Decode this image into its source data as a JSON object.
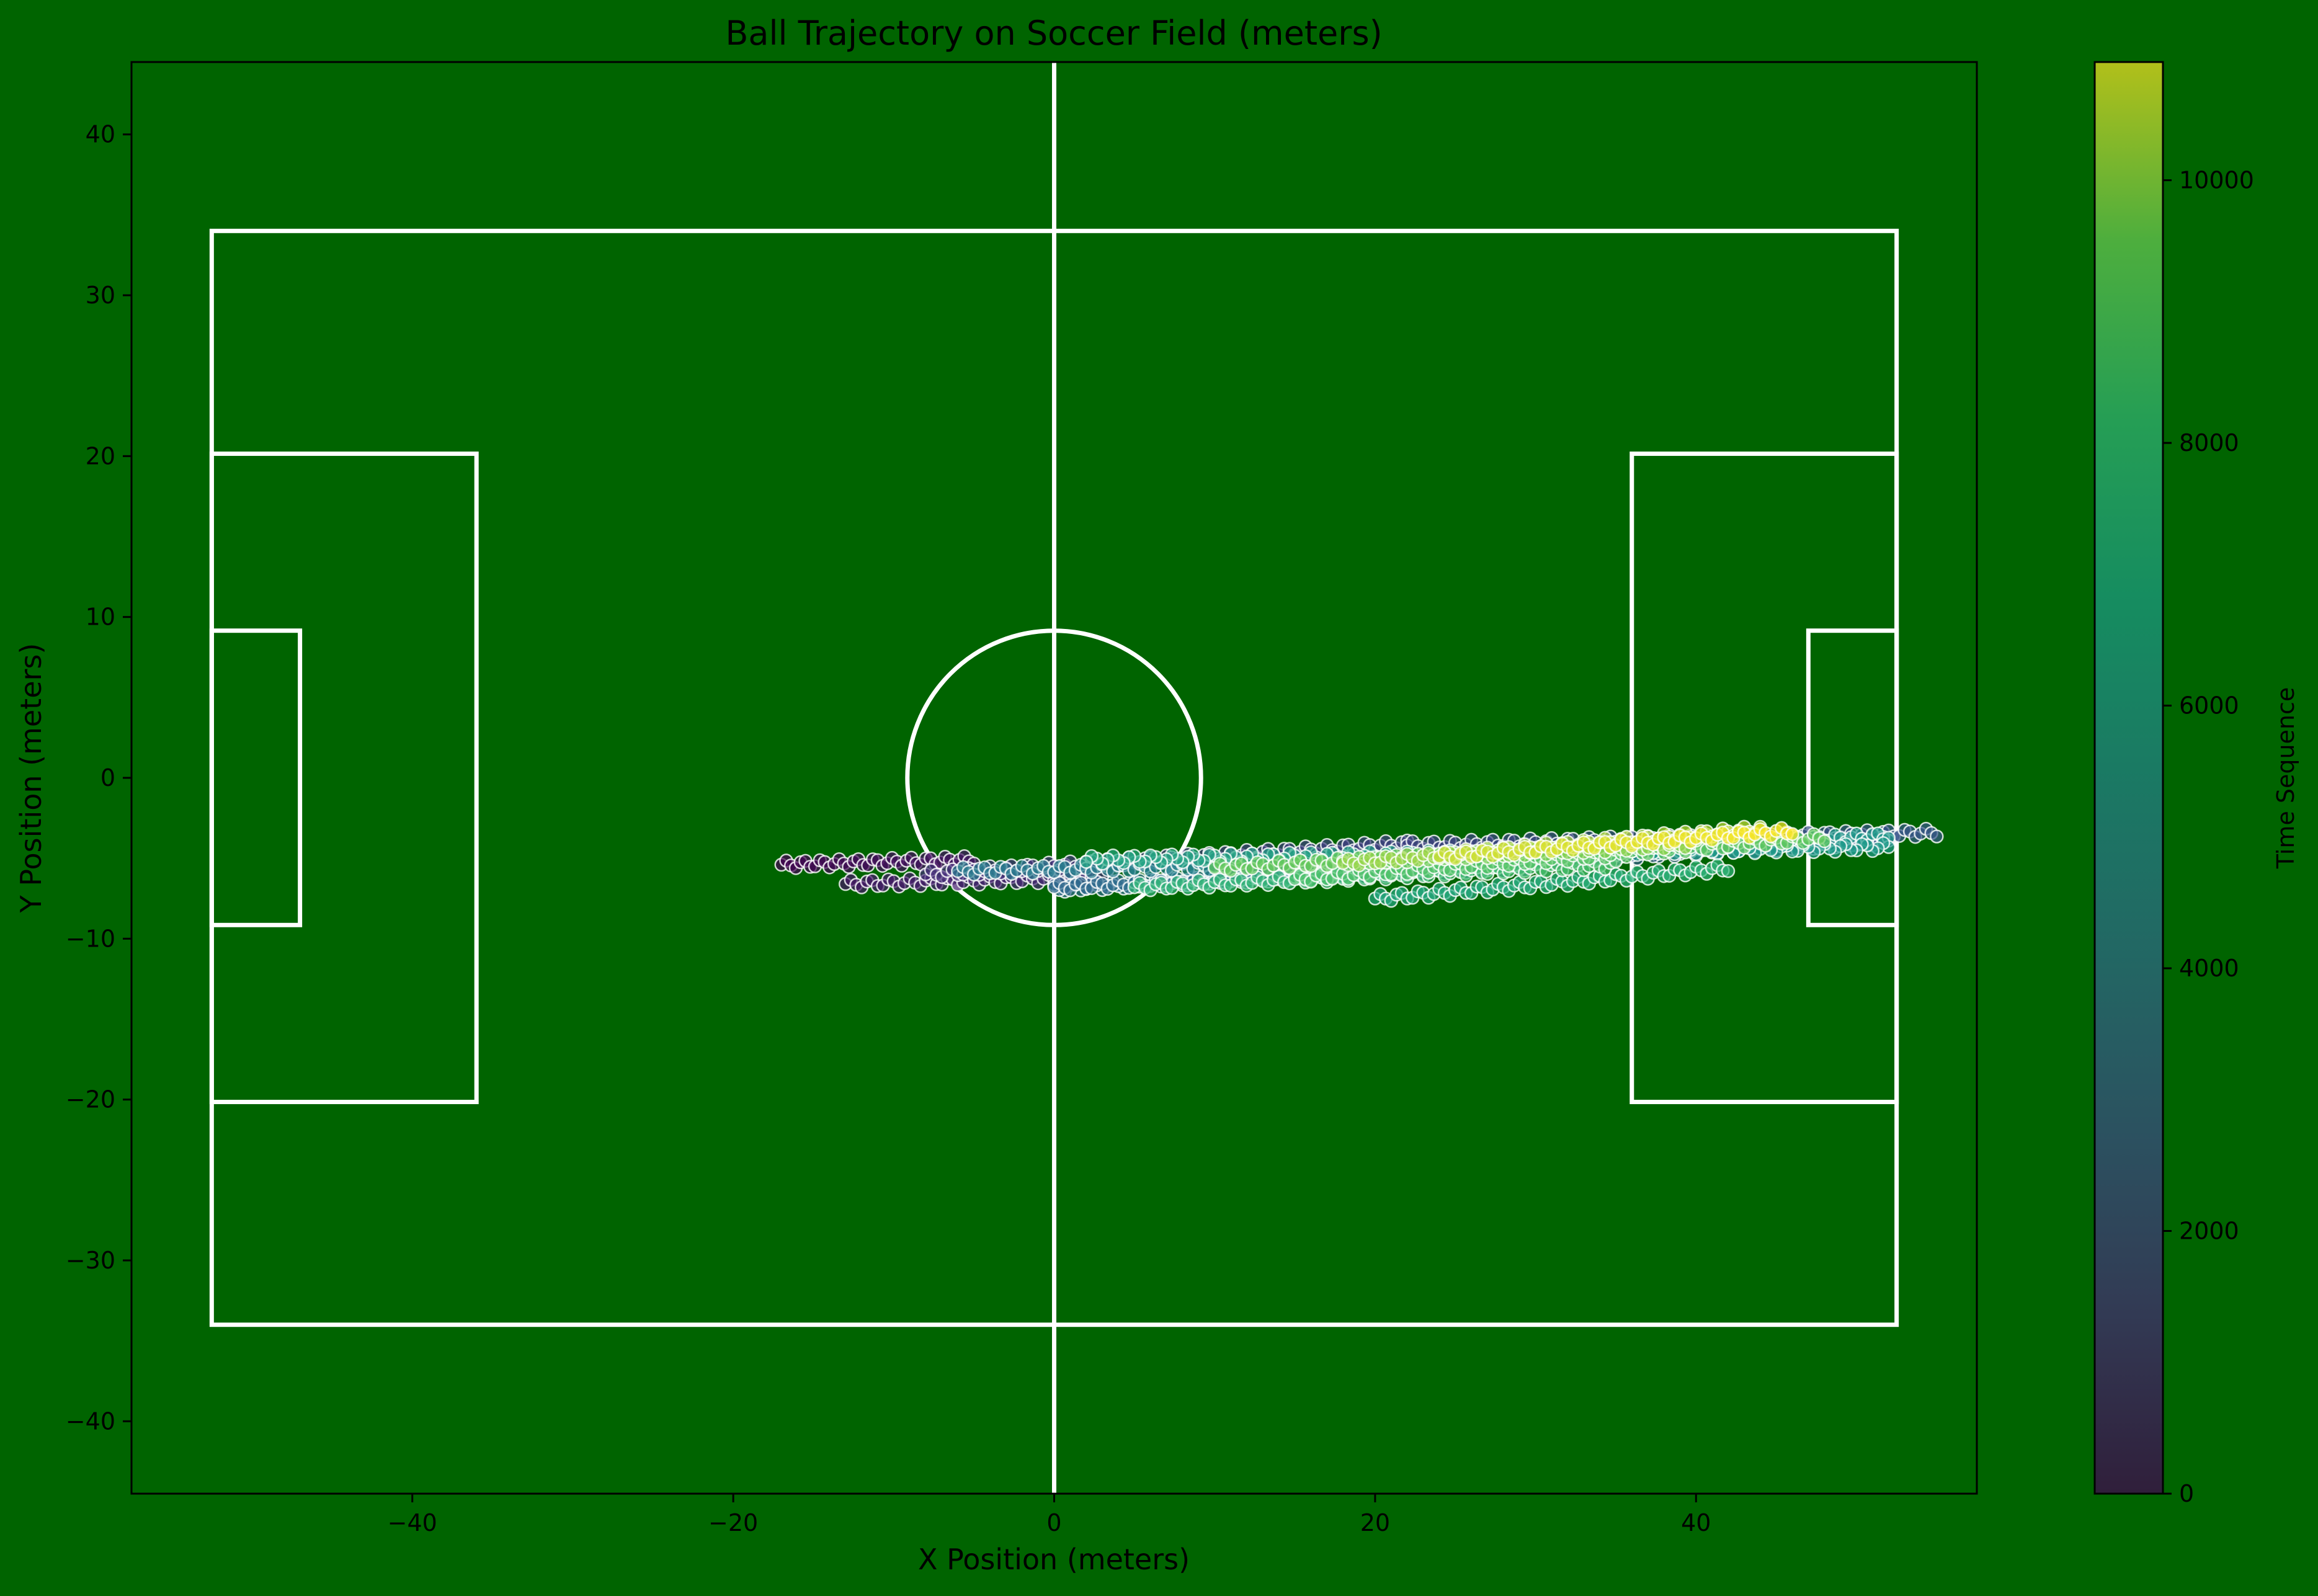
{
  "chart_data": {
    "type": "scatter",
    "title": "Ball Trajectory on Soccer Field (meters)",
    "xlabel": "X Position (meters)",
    "ylabel": "Y Position (meters)",
    "xlim": [
      -57.5,
      57.5
    ],
    "ylim": [
      -44.5,
      44.5
    ],
    "xticks": [
      -40,
      -20,
      0,
      20,
      40
    ],
    "yticks": [
      -40,
      -30,
      -20,
      -10,
      0,
      10,
      20,
      30,
      40
    ],
    "grid": false,
    "background_color": "#006400",
    "line_color": "#ffffff",
    "pitch": {
      "length": 105,
      "width": 68,
      "penalty_area": {
        "depth": 16.5,
        "width": 40.3
      },
      "goal_area": {
        "depth": 5.5,
        "width": 18.3
      },
      "center_circle_radius": 9.15
    },
    "colorbar": {
      "label": "Time Sequence",
      "colormap": "viridis",
      "range": [
        0,
        10900
      ],
      "ticks": [
        0,
        2000,
        4000,
        6000,
        8000,
        10000
      ]
    },
    "trajectory_segments": [
      {
        "t": [
          0,
          700
        ],
        "x": [
          -17,
          -5
        ],
        "y": [
          -5.4,
          -5.1
        ]
      },
      {
        "t": [
          700,
          1600
        ],
        "x": [
          -13,
          3
        ],
        "y": [
          -6.6,
          -6.2
        ]
      },
      {
        "t": [
          1600,
          2400
        ],
        "x": [
          -8,
          22
        ],
        "y": [
          -6.0,
          -4.1
        ]
      },
      {
        "t": [
          2400,
          3300
        ],
        "x": [
          22,
          55
        ],
        "y": [
          -4.2,
          -3.4
        ]
      },
      {
        "t": [
          3300,
          4200
        ],
        "x": [
          52,
          0
        ],
        "y": [
          -3.9,
          -6.9
        ]
      },
      {
        "t": [
          4200,
          5000
        ],
        "x": [
          0,
          30
        ],
        "y": [
          -6.8,
          -5.5
        ]
      },
      {
        "t": [
          5000,
          5800
        ],
        "x": [
          -6,
          25
        ],
        "y": [
          -5.8,
          -5.2
        ]
      },
      {
        "t": [
          5800,
          6600
        ],
        "x": [
          25,
          52
        ],
        "y": [
          -5.0,
          -3.6
        ]
      },
      {
        "t": [
          6600,
          7300
        ],
        "x": [
          52,
          2
        ],
        "y": [
          -4.3,
          -5.1
        ]
      },
      {
        "t": [
          7300,
          8000
        ],
        "x": [
          20,
          42
        ],
        "y": [
          -7.5,
          -5.6
        ]
      },
      {
        "t": [
          8000,
          8700
        ],
        "x": [
          5,
          35
        ],
        "y": [
          -6.8,
          -5.4
        ]
      },
      {
        "t": [
          8700,
          9300
        ],
        "x": [
          15,
          48
        ],
        "y": [
          -6.3,
          -3.7
        ]
      },
      {
        "t": [
          9300,
          9900
        ],
        "x": [
          10,
          40
        ],
        "y": [
          -5.6,
          -4.1
        ]
      },
      {
        "t": [
          9900,
          10400
        ],
        "x": [
          18,
          44
        ],
        "y": [
          -5.3,
          -3.2
        ]
      },
      {
        "t": [
          10400,
          10900
        ],
        "x": [
          24,
          46
        ],
        "y": [
          -4.9,
          -3.3
        ]
      }
    ]
  }
}
